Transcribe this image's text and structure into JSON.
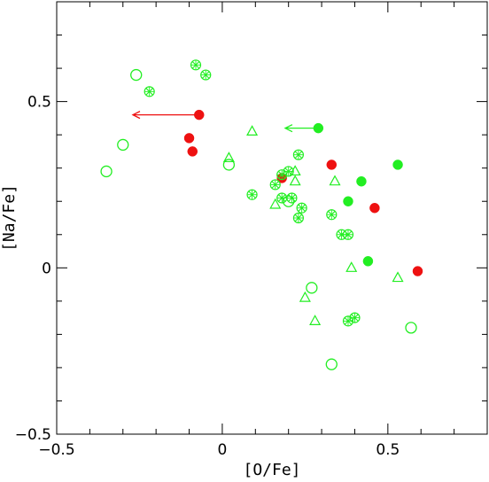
{
  "chart_data": {
    "type": "scatter",
    "title": "",
    "xlabel": "[O/Fe]",
    "ylabel": "[Na/Fe]",
    "xlim": [
      -0.5,
      0.8
    ],
    "ylim": [
      -0.5,
      0.8
    ],
    "xticks": [
      -0.5,
      0,
      0.5
    ],
    "xtick_labels": [
      "−0.5",
      "0",
      "0.5"
    ],
    "yticks": [
      -0.5,
      0,
      0.5
    ],
    "ytick_labels": [
      "−0.5",
      "0",
      "0.5"
    ],
    "grid": false,
    "colors": {
      "red": "#ee1111",
      "green": "#22ee22"
    },
    "series": [
      {
        "marker": "filled-circle",
        "color": "red",
        "points": [
          {
            "x": -0.07,
            "y": 0.46
          },
          {
            "x": -0.1,
            "y": 0.39
          },
          {
            "x": -0.09,
            "y": 0.35
          },
          {
            "x": 0.18,
            "y": 0.27
          },
          {
            "x": 0.33,
            "y": 0.31
          },
          {
            "x": 0.46,
            "y": 0.18
          },
          {
            "x": 0.59,
            "y": -0.01
          }
        ]
      },
      {
        "marker": "filled-circle",
        "color": "green",
        "points": [
          {
            "x": 0.29,
            "y": 0.42
          },
          {
            "x": 0.53,
            "y": 0.31
          },
          {
            "x": 0.42,
            "y": 0.26
          },
          {
            "x": 0.38,
            "y": 0.2
          },
          {
            "x": 0.44,
            "y": 0.02
          }
        ]
      },
      {
        "marker": "open-circle",
        "color": "green",
        "points": [
          {
            "x": -0.26,
            "y": 0.58
          },
          {
            "x": -0.3,
            "y": 0.37
          },
          {
            "x": -0.35,
            "y": 0.29
          },
          {
            "x": 0.02,
            "y": 0.31
          },
          {
            "x": 0.2,
            "y": 0.2
          },
          {
            "x": 0.27,
            "y": -0.06
          },
          {
            "x": 0.57,
            "y": -0.18
          },
          {
            "x": 0.33,
            "y": -0.29
          }
        ]
      },
      {
        "marker": "open-triangle",
        "color": "green",
        "points": [
          {
            "x": 0.09,
            "y": 0.41
          },
          {
            "x": 0.02,
            "y": 0.33
          },
          {
            "x": 0.22,
            "y": 0.29
          },
          {
            "x": 0.22,
            "y": 0.26
          },
          {
            "x": 0.34,
            "y": 0.26
          },
          {
            "x": 0.16,
            "y": 0.19
          },
          {
            "x": 0.39,
            "y": 0.0
          },
          {
            "x": 0.53,
            "y": -0.03
          },
          {
            "x": 0.25,
            "y": -0.09
          },
          {
            "x": 0.28,
            "y": -0.16
          }
        ]
      },
      {
        "marker": "crossed-circle",
        "color": "green",
        "points": [
          {
            "x": -0.08,
            "y": 0.61
          },
          {
            "x": -0.05,
            "y": 0.58
          },
          {
            "x": -0.22,
            "y": 0.53
          },
          {
            "x": 0.23,
            "y": 0.34
          },
          {
            "x": 0.2,
            "y": 0.29
          },
          {
            "x": 0.18,
            "y": 0.28
          },
          {
            "x": 0.16,
            "y": 0.25
          },
          {
            "x": 0.09,
            "y": 0.22
          },
          {
            "x": 0.18,
            "y": 0.21
          },
          {
            "x": 0.21,
            "y": 0.21
          },
          {
            "x": 0.24,
            "y": 0.18
          },
          {
            "x": 0.33,
            "y": 0.16
          },
          {
            "x": 0.23,
            "y": 0.15
          },
          {
            "x": 0.36,
            "y": 0.1
          },
          {
            "x": 0.38,
            "y": 0.1
          },
          {
            "x": 0.38,
            "y": -0.16
          },
          {
            "x": 0.4,
            "y": -0.15
          }
        ]
      }
    ],
    "arrows": [
      {
        "color": "red",
        "from": {
          "x": -0.07,
          "y": 0.46
        },
        "to": {
          "x": -0.27,
          "y": 0.46
        }
      },
      {
        "color": "green",
        "from": {
          "x": 0.29,
          "y": 0.42
        },
        "to": {
          "x": 0.19,
          "y": 0.42
        }
      }
    ]
  }
}
